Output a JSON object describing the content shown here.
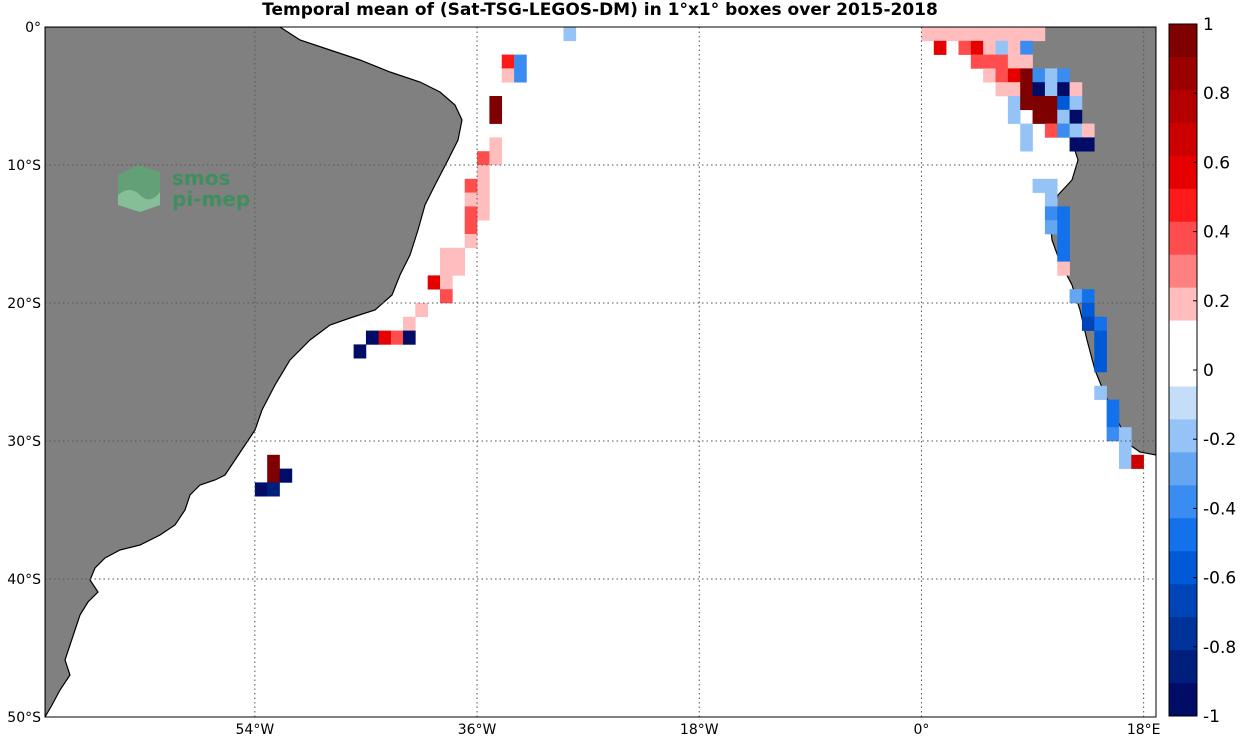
{
  "title": "Temporal mean of (Sat-TSG-LEGOS-DM) in 1°x1° boxes over 2015-2018",
  "logo": {
    "line1": "smos",
    "line2": "pi-mep"
  },
  "colors": {
    "land": "#808080",
    "ocean": "#ffffff",
    "grid": "#555555"
  },
  "map": {
    "lon_range": [
      -71,
      19
    ],
    "lat_range": [
      -50,
      0
    ],
    "x_ticks": [
      {
        "lon": -54,
        "label": "54°W"
      },
      {
        "lon": -36,
        "label": "36°W"
      },
      {
        "lon": -18,
        "label": "18°W"
      },
      {
        "lon": 0,
        "label": "0°"
      },
      {
        "lon": 18,
        "label": "18°E"
      }
    ],
    "y_ticks": [
      {
        "lat": 0,
        "label": "0°"
      },
      {
        "lat": -10,
        "label": "10°S"
      },
      {
        "lat": -20,
        "label": "20°S"
      },
      {
        "lat": -30,
        "label": "30°S"
      },
      {
        "lat": -40,
        "label": "40°S"
      },
      {
        "lat": -50,
        "label": "50°S"
      }
    ]
  },
  "colorbar": {
    "range": [
      -1,
      1
    ],
    "labels": [
      "1",
      "0.8",
      "0.6",
      "0.4",
      "0.2",
      "0",
      "-0.2",
      "-0.4",
      "-0.6",
      "-0.8",
      "-1"
    ],
    "colors_top_to_bottom": [
      "#7f0000",
      "#9a0000",
      "#b40000",
      "#cd0000",
      "#e60000",
      "#ff1a1a",
      "#ff4d4d",
      "#ff8080",
      "#ffbdbd",
      "#ffffff",
      "#ffffff",
      "#c4defa",
      "#96c3f5",
      "#64a6f2",
      "#3a8cf0",
      "#1471ec",
      "#0059d6",
      "#0045b8",
      "#00339a",
      "#001f7c",
      "#000c66"
    ]
  },
  "chart_data": {
    "type": "heatmap",
    "title": "Temporal mean of (Sat-TSG-LEGOS-DM) in 1°x1° boxes over 2015-2018",
    "value_range": [
      -1,
      1
    ],
    "cells": [
      {
        "lon": -28.5,
        "lat": -0.5,
        "v": -0.15
      },
      {
        "lon": -33.5,
        "lat": -2.5,
        "v": 0.5
      },
      {
        "lon": -32.5,
        "lat": -2.5,
        "v": -0.35
      },
      {
        "lon": -33.5,
        "lat": -3.5,
        "v": 0.15
      },
      {
        "lon": -32.5,
        "lat": -3.5,
        "v": -0.35
      },
      {
        "lon": -34.5,
        "lat": -5.5,
        "v": 0.95
      },
      {
        "lon": -34.5,
        "lat": -6.5,
        "v": 0.95
      },
      {
        "lon": -34.5,
        "lat": -8.5,
        "v": 0.15
      },
      {
        "lon": -35.5,
        "lat": -9.5,
        "v": 0.35
      },
      {
        "lon": -34.5,
        "lat": -9.5,
        "v": 0.15
      },
      {
        "lon": -35.5,
        "lat": -10.5,
        "v": 0.15
      },
      {
        "lon": -35.5,
        "lat": -11.5,
        "v": 0.15
      },
      {
        "lon": -36.5,
        "lat": -11.5,
        "v": 0.35
      },
      {
        "lon": -35.5,
        "lat": -12.5,
        "v": 0.15
      },
      {
        "lon": -36.5,
        "lat": -12.5,
        "v": 0.15
      },
      {
        "lon": -35.5,
        "lat": -13.5,
        "v": 0.15
      },
      {
        "lon": -36.5,
        "lat": -13.5,
        "v": 0.35
      },
      {
        "lon": -36.5,
        "lat": -14.5,
        "v": 0.35
      },
      {
        "lon": -36.5,
        "lat": -15.5,
        "v": 0.15
      },
      {
        "lon": -37.5,
        "lat": -16.5,
        "v": 0.2
      },
      {
        "lon": -38.5,
        "lat": -16.5,
        "v": 0.15
      },
      {
        "lon": -37.5,
        "lat": -17.5,
        "v": 0.2
      },
      {
        "lon": -38.5,
        "lat": -17.5,
        "v": 0.2
      },
      {
        "lon": -39.5,
        "lat": -18.5,
        "v": 0.6
      },
      {
        "lon": -38.5,
        "lat": -18.5,
        "v": 0.15
      },
      {
        "lon": -38.5,
        "lat": -19.5,
        "v": 0.35
      },
      {
        "lon": -40.5,
        "lat": -20.5,
        "v": 0.15
      },
      {
        "lon": -41.5,
        "lat": -21.5,
        "v": 0.15
      },
      {
        "lon": -42.5,
        "lat": -22.5,
        "v": 0.35
      },
      {
        "lon": -43.5,
        "lat": -22.5,
        "v": 0.55
      },
      {
        "lon": -44.5,
        "lat": -22.5,
        "v": -0.95
      },
      {
        "lon": -41.5,
        "lat": -22.5,
        "v": -0.95
      },
      {
        "lon": -45.5,
        "lat": -23.5,
        "v": -0.95
      },
      {
        "lon": -52.5,
        "lat": -31.5,
        "v": 0.95
      },
      {
        "lon": -52.5,
        "lat": -32.5,
        "v": 0.95
      },
      {
        "lon": -51.5,
        "lat": -32.5,
        "v": -0.95
      },
      {
        "lon": -53.5,
        "lat": -33.5,
        "v": -0.95
      },
      {
        "lon": -52.5,
        "lat": -33.5,
        "v": -0.9
      },
      {
        "lon": 0.5,
        "lat": -0.5,
        "v": 0.15
      },
      {
        "lon": 1.5,
        "lat": -0.5,
        "v": 0.15
      },
      {
        "lon": 2.5,
        "lat": -0.5,
        "v": 0.15
      },
      {
        "lon": 3.5,
        "lat": -0.5,
        "v": 0.15
      },
      {
        "lon": 4.5,
        "lat": -0.5,
        "v": 0.15
      },
      {
        "lon": 5.5,
        "lat": -0.5,
        "v": 0.15
      },
      {
        "lon": 6.5,
        "lat": -0.5,
        "v": 0.15
      },
      {
        "lon": 7.5,
        "lat": -0.5,
        "v": 0.15
      },
      {
        "lon": 8.5,
        "lat": -0.5,
        "v": 0.15
      },
      {
        "lon": 9.5,
        "lat": -0.5,
        "v": 0.15
      },
      {
        "lon": 1.5,
        "lat": -1.5,
        "v": 0.6
      },
      {
        "lon": 3.5,
        "lat": -1.5,
        "v": 0.35
      },
      {
        "lon": 4.5,
        "lat": -1.5,
        "v": 0.6
      },
      {
        "lon": 5.5,
        "lat": -1.5,
        "v": 0.15
      },
      {
        "lon": 6.5,
        "lat": -1.5,
        "v": -0.15
      },
      {
        "lon": 7.5,
        "lat": -1.5,
        "v": 0.15
      },
      {
        "lon": 8.5,
        "lat": -1.5,
        "v": -0.35
      },
      {
        "lon": 4.5,
        "lat": -2.5,
        "v": 0.35
      },
      {
        "lon": 5.5,
        "lat": -2.5,
        "v": 0.35
      },
      {
        "lon": 6.5,
        "lat": -2.5,
        "v": 0.35
      },
      {
        "lon": 7.5,
        "lat": -2.5,
        "v": 0.15
      },
      {
        "lon": 8.5,
        "lat": -2.5,
        "v": 0.15
      },
      {
        "lon": 5.5,
        "lat": -3.5,
        "v": 0.15
      },
      {
        "lon": 6.5,
        "lat": -3.5,
        "v": 0.35
      },
      {
        "lon": 7.5,
        "lat": -3.5,
        "v": 0.6
      },
      {
        "lon": 8.5,
        "lat": -3.5,
        "v": 0.95
      },
      {
        "lon": 9.5,
        "lat": -3.5,
        "v": -0.35
      },
      {
        "lon": 10.5,
        "lat": -3.5,
        "v": -0.15
      },
      {
        "lon": 11.5,
        "lat": -3.5,
        "v": -0.35
      },
      {
        "lon": 6.5,
        "lat": -4.5,
        "v": 0.15
      },
      {
        "lon": 7.5,
        "lat": -4.5,
        "v": 0.15
      },
      {
        "lon": 8.5,
        "lat": -4.5,
        "v": 0.95
      },
      {
        "lon": 9.5,
        "lat": -4.5,
        "v": -0.95
      },
      {
        "lon": 10.5,
        "lat": -4.5,
        "v": -0.15
      },
      {
        "lon": 11.5,
        "lat": -4.5,
        "v": -0.95
      },
      {
        "lon": 12.5,
        "lat": -4.5,
        "v": 0.15
      },
      {
        "lon": 7.5,
        "lat": -5.5,
        "v": -0.15
      },
      {
        "lon": 8.5,
        "lat": -5.5,
        "v": 0.95
      },
      {
        "lon": 9.5,
        "lat": -5.5,
        "v": 0.95
      },
      {
        "lon": 10.5,
        "lat": -5.5,
        "v": 0.95
      },
      {
        "lon": 11.5,
        "lat": -5.5,
        "v": -0.6
      },
      {
        "lon": 12.5,
        "lat": -5.5,
        "v": -0.15
      },
      {
        "lon": 7.5,
        "lat": -6.5,
        "v": -0.15
      },
      {
        "lon": 9.5,
        "lat": -6.5,
        "v": 0.95
      },
      {
        "lon": 10.5,
        "lat": -6.5,
        "v": 0.95
      },
      {
        "lon": 11.5,
        "lat": -6.5,
        "v": -0.15
      },
      {
        "lon": 12.5,
        "lat": -6.5,
        "v": -0.95
      },
      {
        "lon": 8.5,
        "lat": -7.5,
        "v": -0.15
      },
      {
        "lon": 10.5,
        "lat": -7.5,
        "v": 0.35
      },
      {
        "lon": 11.5,
        "lat": -7.5,
        "v": -0.35
      },
      {
        "lon": 12.5,
        "lat": -7.5,
        "v": -0.15
      },
      {
        "lon": 13.5,
        "lat": -7.5,
        "v": 0.15
      },
      {
        "lon": 8.5,
        "lat": -8.5,
        "v": -0.15
      },
      {
        "lon": 12.5,
        "lat": -8.5,
        "v": -0.95
      },
      {
        "lon": 13.5,
        "lat": -8.5,
        "v": -0.95
      },
      {
        "lon": 9.5,
        "lat": -11.5,
        "v": -0.15
      },
      {
        "lon": 10.5,
        "lat": -11.5,
        "v": -0.2
      },
      {
        "lon": 10.5,
        "lat": -12.5,
        "v": -0.15
      },
      {
        "lon": 10.5,
        "lat": -13.5,
        "v": -0.35
      },
      {
        "lon": 11.5,
        "lat": -13.5,
        "v": -0.5
      },
      {
        "lon": 10.5,
        "lat": -14.5,
        "v": -0.3
      },
      {
        "lon": 11.5,
        "lat": -14.5,
        "v": -0.5
      },
      {
        "lon": 11.5,
        "lat": -15.5,
        "v": -0.5
      },
      {
        "lon": 11.5,
        "lat": -16.5,
        "v": -0.5
      },
      {
        "lon": 11.5,
        "lat": -17.5,
        "v": 0.2
      },
      {
        "lon": 12.5,
        "lat": -19.5,
        "v": -0.3
      },
      {
        "lon": 13.5,
        "lat": -19.5,
        "v": -0.5
      },
      {
        "lon": 13.5,
        "lat": -20.5,
        "v": -0.6
      },
      {
        "lon": 13.5,
        "lat": -21.5,
        "v": -0.7
      },
      {
        "lon": 14.5,
        "lat": -21.5,
        "v": -0.5
      },
      {
        "lon": 14.5,
        "lat": -22.5,
        "v": -0.6
      },
      {
        "lon": 14.5,
        "lat": -23.5,
        "v": -0.6
      },
      {
        "lon": 14.5,
        "lat": -24.5,
        "v": -0.6
      },
      {
        "lon": 14.5,
        "lat": -26.5,
        "v": -0.15
      },
      {
        "lon": 15.5,
        "lat": -27.5,
        "v": -0.5
      },
      {
        "lon": 15.5,
        "lat": -28.5,
        "v": -0.5
      },
      {
        "lon": 15.5,
        "lat": -29.5,
        "v": -0.35
      },
      {
        "lon": 16.5,
        "lat": -29.5,
        "v": -0.2
      },
      {
        "lon": 16.5,
        "lat": -30.5,
        "v": -0.15
      },
      {
        "lon": 16.5,
        "lat": -31.5,
        "v": -0.2
      },
      {
        "lon": 17.5,
        "lat": -31.5,
        "v": 0.7
      }
    ]
  }
}
